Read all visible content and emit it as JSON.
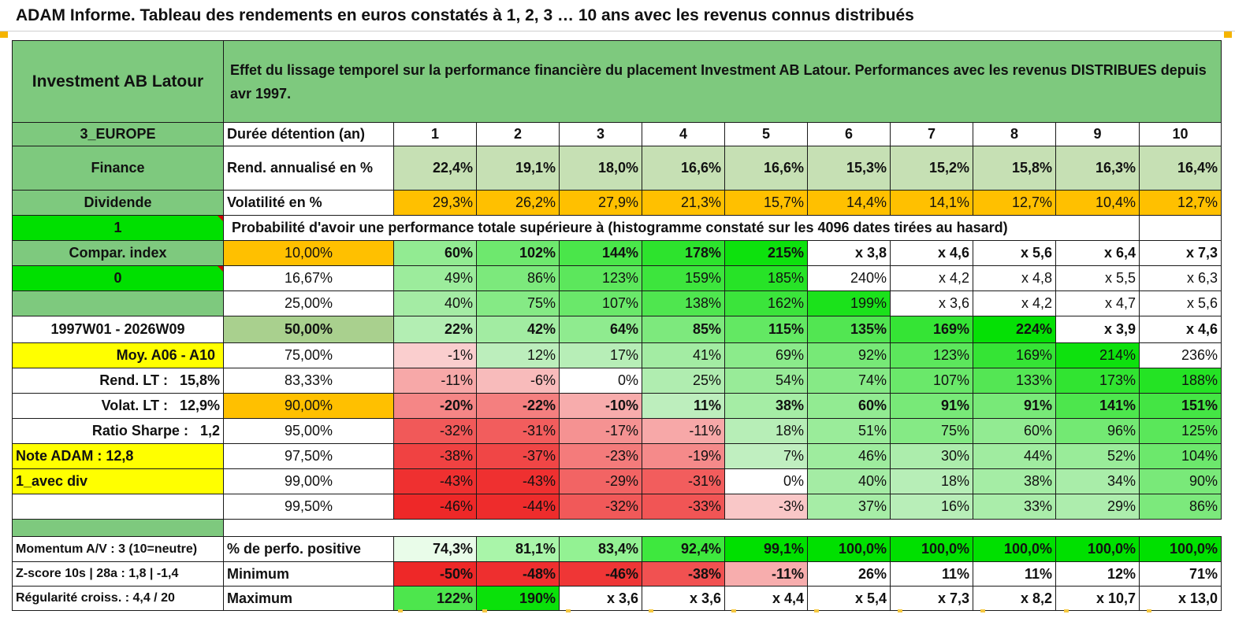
{
  "title": "ADAM Informe. Tableau des rendements en euros constatés à 1, 2, 3 … 10 ans avec les revenus connus distribués",
  "header": {
    "fund_name": "Investment AB Latour",
    "description": "Effet du lissage temporel sur la performance financière du placement Investment AB Latour. Performances avec les revenus DISTRIBUES depuis avr 1997."
  },
  "left": {
    "region": "3_EUROPE",
    "sector": "Finance",
    "type": "Dividende",
    "flag1": "1",
    "compar": "Compar. index",
    "flag0": "0",
    "period": "1997W01 - 2026W09",
    "moy": "Moy. A06 - A10",
    "rend_lt_label": "Rend. LT :",
    "rend_lt_value": "15,8%",
    "volat_lt_label": "Volat. LT :",
    "volat_lt_value": "12,9%",
    "sharpe_label": "Ratio Sharpe :",
    "sharpe_value": "1,2",
    "note": "Note ADAM : 12,8",
    "avec_div": "1_avec div",
    "momentum": "Momentum A/V : 3 (10=neutre)",
    "zscore": "Z-score 10s | 28a : 1,8 | -1,4",
    "regularite": "Régularité croiss. : 4,4 / 20"
  },
  "durations": {
    "label": "Durée détention (an)",
    "values": [
      "1",
      "2",
      "3",
      "4",
      "5",
      "6",
      "7",
      "8",
      "9",
      "10"
    ]
  },
  "rend": {
    "label": "Rend. annualisé en %",
    "values": [
      "22,4%",
      "19,1%",
      "18,0%",
      "16,6%",
      "16,6%",
      "15,3%",
      "15,2%",
      "15,8%",
      "16,3%",
      "16,4%"
    ]
  },
  "volat": {
    "label": "Volatilité en %",
    "values": [
      "29,3%",
      "26,2%",
      "27,9%",
      "21,3%",
      "15,7%",
      "14,4%",
      "14,1%",
      "12,7%",
      "10,4%",
      "12,7%"
    ]
  },
  "proba_title": "Probabilité d'avoir une performance totale supérieure à (histogramme constaté sur les 4096 dates tirées au hasard)",
  "perf_rows": [
    {
      "pct": "10,00%",
      "values": [
        "60%",
        "102%",
        "144%",
        "178%",
        "215%",
        "x 3,8",
        "x 4,6",
        "x 5,6",
        "x 6,4",
        "x 7,3"
      ]
    },
    {
      "pct": "16,67%",
      "values": [
        "49%",
        "86%",
        "123%",
        "159%",
        "185%",
        "240%",
        "x 4,2",
        "x 4,8",
        "x 5,5",
        "x 6,3"
      ]
    },
    {
      "pct": "25,00%",
      "values": [
        "40%",
        "75%",
        "107%",
        "138%",
        "162%",
        "199%",
        "x 3,6",
        "x 4,2",
        "x 4,7",
        "x 5,6"
      ]
    },
    {
      "pct": "50,00%",
      "values": [
        "22%",
        "42%",
        "64%",
        "85%",
        "115%",
        "135%",
        "169%",
        "224%",
        "x 3,9",
        "x 4,6"
      ]
    },
    {
      "pct": "75,00%",
      "values": [
        "-1%",
        "12%",
        "17%",
        "41%",
        "69%",
        "92%",
        "123%",
        "169%",
        "214%",
        "236%"
      ]
    },
    {
      "pct": "83,33%",
      "values": [
        "-11%",
        "-6%",
        "0%",
        "25%",
        "54%",
        "74%",
        "107%",
        "133%",
        "173%",
        "188%"
      ]
    },
    {
      "pct": "90,00%",
      "values": [
        "-20%",
        "-22%",
        "-10%",
        "11%",
        "38%",
        "60%",
        "91%",
        "91%",
        "141%",
        "151%"
      ]
    },
    {
      "pct": "95,00%",
      "values": [
        "-32%",
        "-31%",
        "-17%",
        "-11%",
        "18%",
        "51%",
        "75%",
        "60%",
        "96%",
        "125%"
      ]
    },
    {
      "pct": "97,50%",
      "values": [
        "-38%",
        "-37%",
        "-23%",
        "-19%",
        "7%",
        "46%",
        "30%",
        "44%",
        "52%",
        "104%"
      ]
    },
    {
      "pct": "99,00%",
      "values": [
        "-43%",
        "-43%",
        "-29%",
        "-31%",
        "0%",
        "40%",
        "18%",
        "38%",
        "34%",
        "90%"
      ]
    },
    {
      "pct": "99,50%",
      "values": [
        "-46%",
        "-44%",
        "-32%",
        "-33%",
        "-3%",
        "37%",
        "16%",
        "33%",
        "29%",
        "86%"
      ]
    }
  ],
  "positive": {
    "label": "% de perfo. positive",
    "values": [
      "74,3%",
      "81,1%",
      "83,4%",
      "92,4%",
      "99,1%",
      "100,0%",
      "100,0%",
      "100,0%",
      "100,0%",
      "100,0%"
    ]
  },
  "minimum": {
    "label": "Minimum",
    "values": [
      "-50%",
      "-48%",
      "-46%",
      "-38%",
      "-11%",
      "26%",
      "11%",
      "11%",
      "12%",
      "71%"
    ]
  },
  "maximum": {
    "label": "Maximum",
    "values": [
      "122%",
      "190%",
      "x 3,6",
      "x 3,6",
      "x 4,4",
      "x 5,4",
      "x 7,3",
      "x 8,2",
      "x 10,7",
      "x 13,0"
    ]
  },
  "colors": {
    "header_green": "#7ec97e",
    "light_green": "#c6e0b4",
    "bright_green": "#00e000",
    "yellow": "#ffff00",
    "orange": "#ffc000",
    "label_red": "#d40000"
  }
}
